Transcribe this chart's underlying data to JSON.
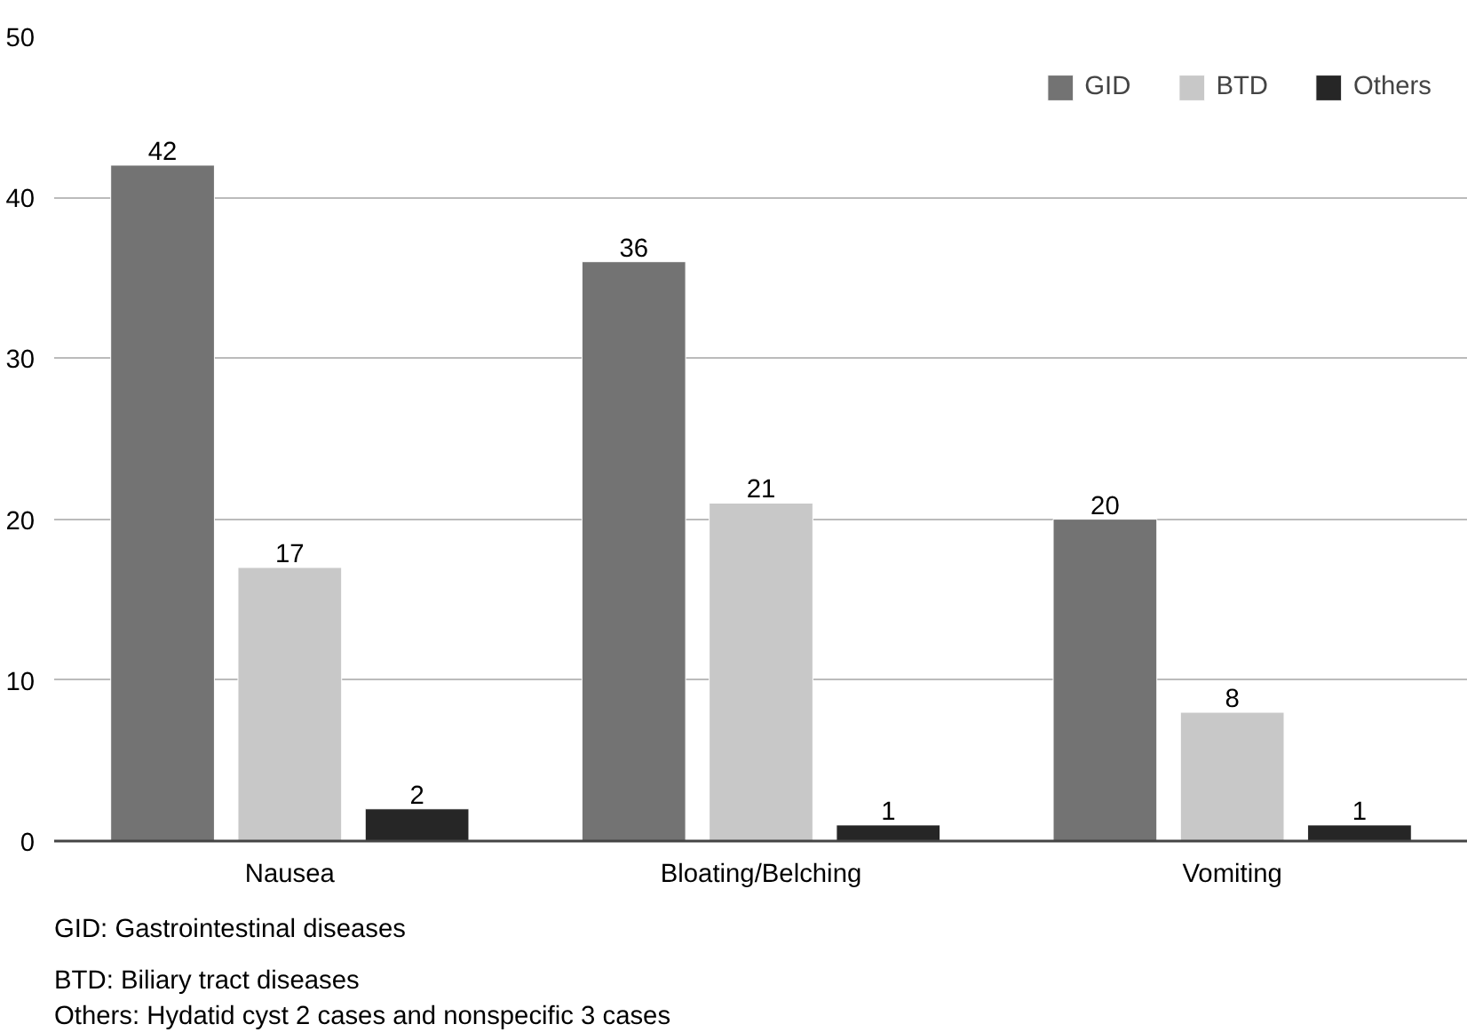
{
  "chart_data": {
    "type": "bar",
    "categories": [
      "Nausea",
      "Bloating/Belching",
      "Vomiting"
    ],
    "series": [
      {
        "name": "GID",
        "color": "#737373",
        "values": [
          42,
          36,
          20
        ]
      },
      {
        "name": "BTD",
        "color": "#c8c8c8",
        "values": [
          17,
          21,
          8
        ]
      },
      {
        "name": "Others",
        "color": "#262626",
        "values": [
          2,
          1,
          1
        ]
      }
    ],
    "ylim": [
      0,
      50
    ],
    "yticks": [
      0,
      10,
      20,
      30,
      40,
      50
    ],
    "grid": "y",
    "legend": "top right",
    "data_labels": true,
    "annotations": [
      "GID: Gastrointestinal diseases",
      "BTD: Biliary tract diseases",
      "Others: Hydatid cyst 2 cases and nonspecific 3 cases"
    ]
  }
}
